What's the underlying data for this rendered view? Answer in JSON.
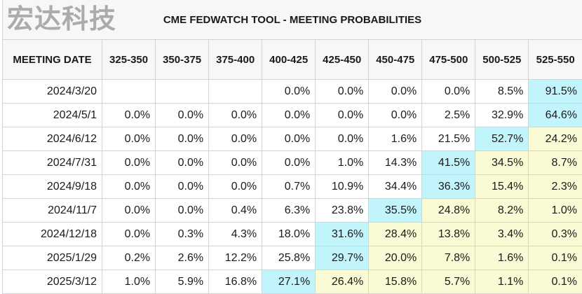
{
  "title": "CME FEDWATCH TOOL - MEETING PROBABILITIES",
  "watermark": "宏达科技",
  "colors": {
    "max_highlight": "#c2f4fb",
    "above_highlight": "#fafad5",
    "header_bg": "#f7f7f7"
  },
  "chart_data": {
    "type": "table",
    "title": "CME FEDWATCH TOOL - MEETING PROBABILITIES",
    "columns": [
      "MEETING DATE",
      "325-350",
      "350-375",
      "375-400",
      "400-425",
      "425-450",
      "450-475",
      "475-500",
      "500-525",
      "525-550"
    ],
    "rows": [
      {
        "date": "2024/3/20",
        "values": [
          "",
          "",
          "",
          "0.0%",
          "0.0%",
          "0.0%",
          "0.0%",
          "8.5%",
          "91.5%"
        ],
        "highlight": [
          "",
          "",
          "",
          "",
          "",
          "",
          "",
          "",
          "max"
        ]
      },
      {
        "date": "2024/5/1",
        "values": [
          "0.0%",
          "0.0%",
          "0.0%",
          "0.0%",
          "0.0%",
          "0.0%",
          "2.5%",
          "32.9%",
          "64.6%"
        ],
        "highlight": [
          "",
          "",
          "",
          "",
          "",
          "",
          "",
          "",
          "max"
        ]
      },
      {
        "date": "2024/6/12",
        "values": [
          "0.0%",
          "0.0%",
          "0.0%",
          "0.0%",
          "0.0%",
          "1.6%",
          "21.5%",
          "52.7%",
          "24.2%"
        ],
        "highlight": [
          "",
          "",
          "",
          "",
          "",
          "",
          "",
          "max",
          "above"
        ]
      },
      {
        "date": "2024/7/31",
        "values": [
          "0.0%",
          "0.0%",
          "0.0%",
          "0.0%",
          "1.0%",
          "14.3%",
          "41.5%",
          "34.5%",
          "8.7%"
        ],
        "highlight": [
          "",
          "",
          "",
          "",
          "",
          "",
          "max",
          "above",
          "above"
        ]
      },
      {
        "date": "2024/9/18",
        "values": [
          "0.0%",
          "0.0%",
          "0.0%",
          "0.7%",
          "10.9%",
          "34.4%",
          "36.3%",
          "15.4%",
          "2.3%"
        ],
        "highlight": [
          "",
          "",
          "",
          "",
          "",
          "",
          "max",
          "above",
          "above"
        ]
      },
      {
        "date": "2024/11/7",
        "values": [
          "0.0%",
          "0.0%",
          "0.4%",
          "6.3%",
          "23.8%",
          "35.5%",
          "24.8%",
          "8.2%",
          "1.0%"
        ],
        "highlight": [
          "",
          "",
          "",
          "",
          "",
          "max",
          "above",
          "above",
          "above"
        ]
      },
      {
        "date": "2024/12/18",
        "values": [
          "0.0%",
          "0.3%",
          "4.3%",
          "18.0%",
          "31.6%",
          "28.4%",
          "13.8%",
          "3.4%",
          "0.3%"
        ],
        "highlight": [
          "",
          "",
          "",
          "",
          "max",
          "above",
          "above",
          "above",
          "above"
        ]
      },
      {
        "date": "2025/1/29",
        "values": [
          "0.2%",
          "2.6%",
          "12.2%",
          "25.8%",
          "29.7%",
          "20.0%",
          "7.8%",
          "1.6%",
          "0.1%"
        ],
        "highlight": [
          "",
          "",
          "",
          "",
          "max",
          "above",
          "above",
          "above",
          "above"
        ]
      },
      {
        "date": "2025/3/12",
        "values": [
          "1.0%",
          "5.9%",
          "16.8%",
          "27.1%",
          "26.4%",
          "15.8%",
          "5.7%",
          "1.1%",
          "0.1%"
        ],
        "highlight": [
          "",
          "",
          "",
          "max",
          "above",
          "above",
          "above",
          "above",
          "above"
        ]
      }
    ]
  }
}
